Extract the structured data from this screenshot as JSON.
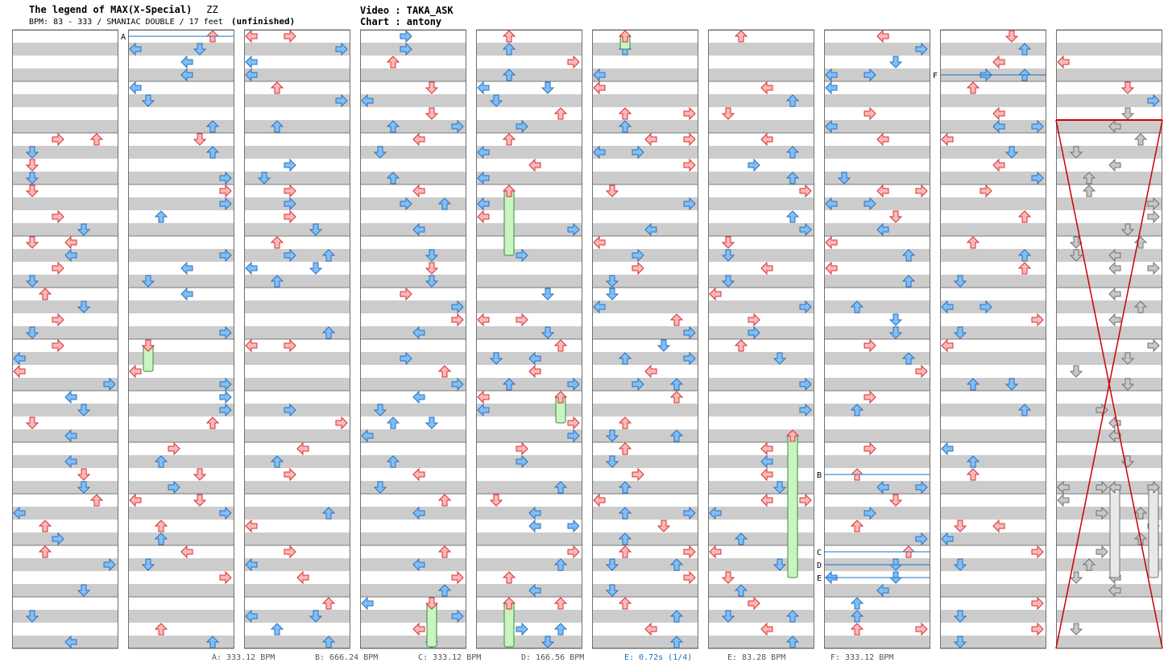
{
  "header": {
    "song_title": "The legend of MAX(X-Special)",
    "song_subtitle": "ZZ",
    "bpm_info": "BPM: 83 - 333 / SMANIAC DOUBLE / 17 feet",
    "status": "(unfinished)",
    "video": "Video : TAKA_ASK",
    "chart": "Chart : antony"
  },
  "colors": {
    "arrow_red": "#ffb8b8",
    "arrow_red_stroke": "#d03030",
    "arrow_blue": "#7fbff5",
    "arrow_blue_stroke": "#2a6fc0",
    "arrow_gray": "#c8c8c8",
    "freeze_green": "#c8f5c0",
    "marker_line": "#1a6fc4",
    "stealth_cross": "#cc0000"
  },
  "markers": [
    {
      "label": "A",
      "column": 1
    },
    {
      "label": "B",
      "column": 7
    },
    {
      "label": "C",
      "column": 7
    },
    {
      "label": "D",
      "column": 7
    },
    {
      "label": "E",
      "column": 7
    },
    {
      "label": "F",
      "column": 8
    }
  ],
  "legend": [
    {
      "text": "A: 333.12 BPM",
      "highlight": false
    },
    {
      "text": "B: 666.24 BPM",
      "highlight": false
    },
    {
      "text": "C: 333.12 BPM",
      "highlight": false
    },
    {
      "text": "D: 166.56 BPM",
      "highlight": false
    },
    {
      "text": "E: 0.72s (1/4)",
      "highlight": true
    },
    {
      "text": "E: 83.28 BPM",
      "highlight": false
    },
    {
      "text": "F: 333.12 BPM",
      "highlight": false
    }
  ]
}
